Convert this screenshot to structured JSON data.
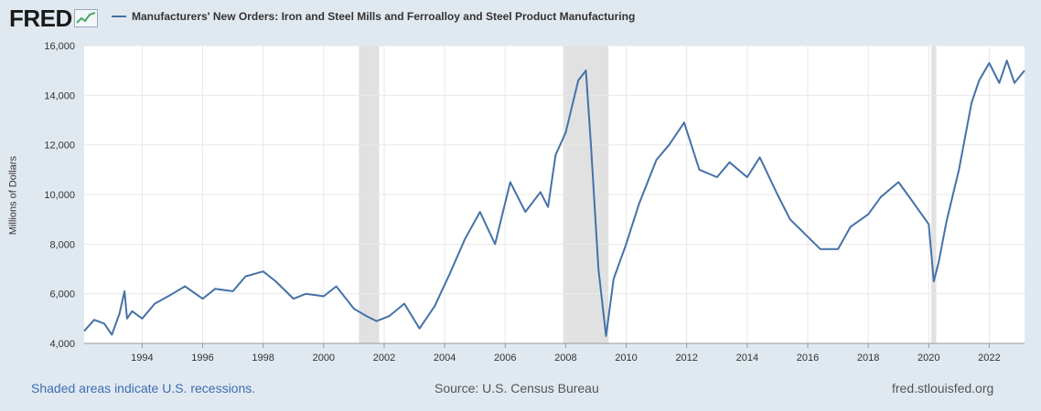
{
  "header": {
    "logo_text": "FRED",
    "logo_icon": "trend-line-icon",
    "series_title": "Manufacturers' New Orders: Iron and Steel Mills and Ferroalloy and Steel Product Manufacturing"
  },
  "footer": {
    "recession_note": "Shaded areas indicate U.S. recessions.",
    "source": "Source: U.S. Census Bureau",
    "site": "fred.stlouisfed.org"
  },
  "colors": {
    "background": "#e1e9f0",
    "plot_background": "#ffffff",
    "series_line": "#4572a7",
    "recession_shade": "#e1e1e1",
    "grid": "#e8e8e8"
  },
  "chart_data": {
    "type": "line",
    "title": "Manufacturers' New Orders: Iron and Steel Mills and Ferroalloy and Steel Product Manufacturing",
    "xlabel": "",
    "ylabel": "Millions of Dollars",
    "xlim": [
      "1992-02",
      "2023-03"
    ],
    "ylim": [
      4000,
      16000
    ],
    "y_ticks": [
      "4,000",
      "6,000",
      "8,000",
      "10,000",
      "12,000",
      "14,000",
      "16,000"
    ],
    "y_tick_values": [
      4000,
      6000,
      8000,
      10000,
      12000,
      14000,
      16000
    ],
    "x_ticks": [
      "1994",
      "1996",
      "1998",
      "2000",
      "2002",
      "2004",
      "2006",
      "2008",
      "2010",
      "2012",
      "2014",
      "2016",
      "2018",
      "2020",
      "2022"
    ],
    "grid": true,
    "legend": "top-left",
    "recessions": [
      [
        "2001-03",
        "2001-11"
      ],
      [
        "2007-12",
        "2009-06"
      ],
      [
        "2020-02",
        "2020-04"
      ]
    ],
    "series": [
      {
        "name": "Manufacturers' New Orders: Iron and Steel Mills and Ferroalloy and Steel Product Manufacturing",
        "x": [
          "1992-02",
          "1992-06",
          "1992-10",
          "1993-01",
          "1993-04",
          "1993-06",
          "1993-07",
          "1993-09",
          "1994-01",
          "1994-06",
          "1995-01",
          "1995-06",
          "1996-01",
          "1996-06",
          "1997-01",
          "1997-06",
          "1998-01",
          "1998-06",
          "1999-01",
          "1999-06",
          "2000-01",
          "2000-06",
          "2001-01",
          "2001-06",
          "2001-10",
          "2002-03",
          "2002-09",
          "2003-03",
          "2003-09",
          "2004-03",
          "2004-09",
          "2005-03",
          "2005-09",
          "2006-03",
          "2006-09",
          "2007-03",
          "2007-06",
          "2007-09",
          "2008-01",
          "2008-06",
          "2008-09",
          "2008-11",
          "2009-02",
          "2009-05",
          "2009-08",
          "2010-01",
          "2010-06",
          "2011-01",
          "2011-06",
          "2011-12",
          "2012-06",
          "2013-01",
          "2013-06",
          "2014-01",
          "2014-06",
          "2015-01",
          "2015-06",
          "2016-01",
          "2016-06",
          "2017-01",
          "2017-06",
          "2018-01",
          "2018-06",
          "2019-01",
          "2019-06",
          "2020-01",
          "2020-03",
          "2020-05",
          "2020-08",
          "2021-01",
          "2021-06",
          "2021-09",
          "2022-01",
          "2022-05",
          "2022-08",
          "2022-11",
          "2023-03"
        ],
        "values": [
          4500,
          4950,
          4800,
          4350,
          5200,
          6100,
          5000,
          5300,
          5000,
          5600,
          6000,
          6300,
          5800,
          6200,
          6100,
          6700,
          6900,
          6500,
          5800,
          6000,
          5900,
          6300,
          5400,
          5100,
          4900,
          5100,
          5600,
          4600,
          5500,
          6800,
          8200,
          9300,
          8000,
          10500,
          9300,
          10100,
          9500,
          11600,
          12500,
          14600,
          15000,
          12000,
          7000,
          4300,
          6600,
          8000,
          9600,
          11400,
          12000,
          12900,
          11000,
          10700,
          11300,
          10700,
          11500,
          10000,
          9000,
          8300,
          7800,
          7800,
          8700,
          9200,
          9900,
          10500,
          9800,
          8800,
          6500,
          7300,
          8900,
          11000,
          13700,
          14600,
          15300,
          14500,
          15400,
          14500,
          15000
        ]
      }
    ]
  }
}
